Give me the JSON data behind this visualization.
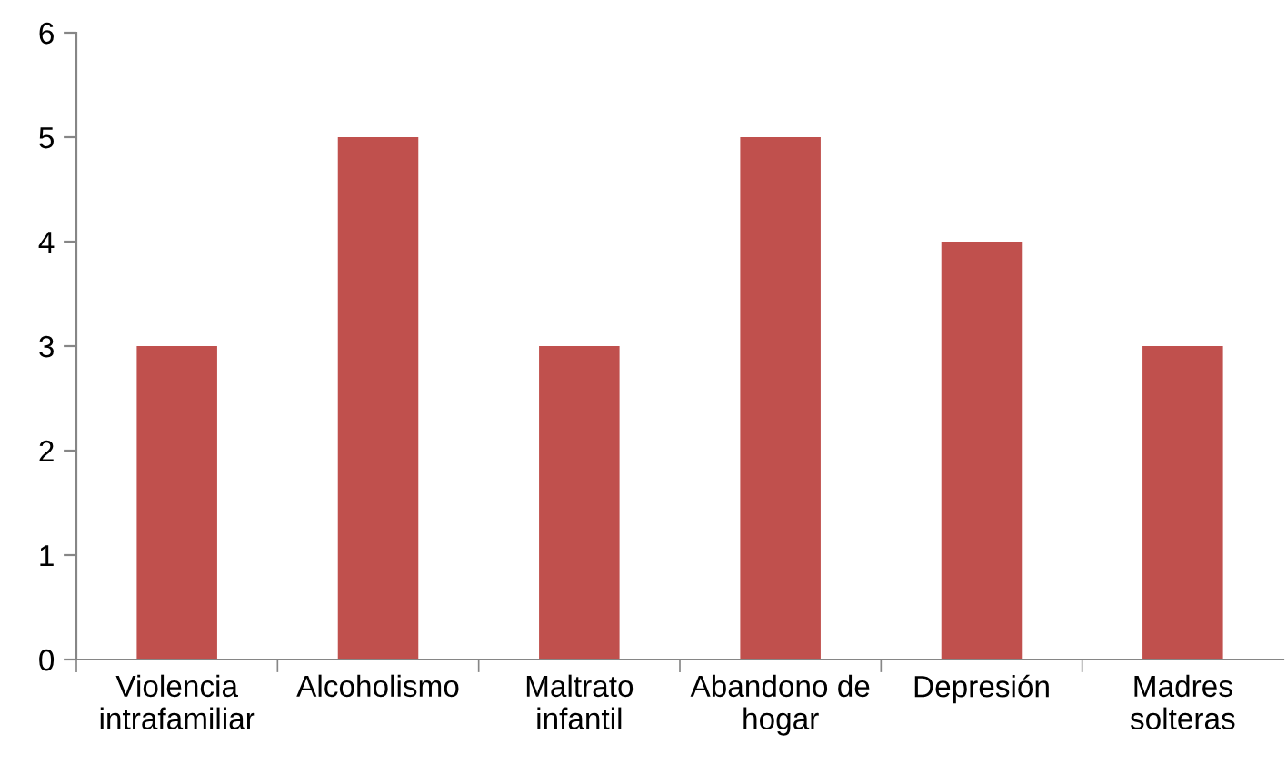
{
  "chart_data": {
    "type": "bar",
    "categories": [
      "Violencia\nintrafamiliar",
      "Alcoholismo",
      "Maltrato\ninfantil",
      "Abandono de\nhogar",
      "Depresión",
      "Madres\nsolteras"
    ],
    "values": [
      3,
      5,
      3,
      5,
      4,
      3
    ],
    "color": "#c0504d",
    "ylim": [
      0,
      6
    ],
    "yticks": [
      0,
      1,
      2,
      3,
      4,
      5,
      6
    ],
    "grid": false,
    "legend": false
  }
}
